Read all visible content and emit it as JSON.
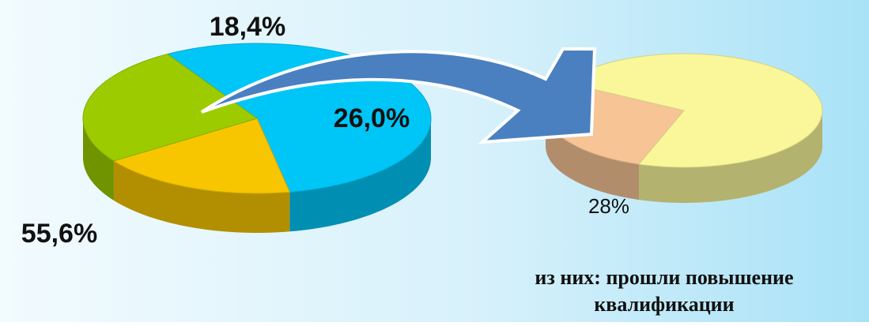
{
  "chart_data": [
    {
      "type": "pie3d",
      "values": [
        55.6,
        18.4,
        26.0
      ],
      "value_labels": [
        "55,6%",
        "18,4%",
        "26,0%"
      ],
      "colors": [
        "#00c6f7",
        "#f7c600",
        "#9ccc00"
      ]
    },
    {
      "type": "pie3d",
      "values": [
        28,
        72
      ],
      "value_labels": [
        "28%",
        null
      ],
      "colors": [
        "#f7c496",
        "#f9f79a"
      ],
      "annotation": [
        "из них: прошли повышение",
        "квалификации"
      ]
    }
  ]
}
